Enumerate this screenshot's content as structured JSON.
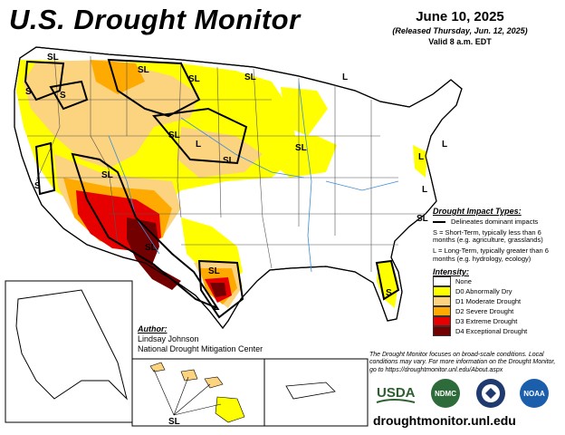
{
  "title": "U.S. Drought Monitor",
  "date": "June 10, 2025",
  "released": "(Released Thursday, Jun. 12, 2025)",
  "valid": "Valid 8 a.m. EDT",
  "impact_legend": {
    "heading": "Drought Impact Types:",
    "delineates": "Delineates dominant impacts",
    "short_term": "S = Short-Term, typically less than 6 months (e.g. agriculture, grasslands)",
    "long_term": "L = Long-Term, typically greater than 6 months (e.g. hydrology, ecology)"
  },
  "intensity": {
    "heading": "Intensity:",
    "levels": [
      {
        "label": "None",
        "color": "#ffffff"
      },
      {
        "label": "D0 Abnormally Dry",
        "color": "#ffff00"
      },
      {
        "label": "D1 Moderate Drought",
        "color": "#fcd37f"
      },
      {
        "label": "D2 Severe Drought",
        "color": "#ffaa00"
      },
      {
        "label": "D3 Extreme Drought",
        "color": "#e60000"
      },
      {
        "label": "D4 Exceptional Drought",
        "color": "#730000"
      }
    ]
  },
  "author": {
    "heading": "Author:",
    "name": "Lindsay Johnson",
    "org": "National Drought Mitigation Center"
  },
  "note": "The Drought Monitor focuses on broad-scale conditions. Local conditions may vary. For more information on the Drought Monitor, go to https://droughtmonitor.unl.edu/About.aspx",
  "url": "droughtmonitor.unl.edu",
  "logos": [
    "USDA",
    "NDMC",
    "NOAA"
  ],
  "map_labels": [
    "SL",
    "SL",
    "SL",
    "SL",
    "L",
    "S",
    "S",
    "SL",
    "L",
    "SL",
    "SL",
    "S",
    "L",
    "SL",
    "L",
    "SL",
    "SL",
    "S",
    "L",
    "SL",
    "L"
  ]
}
